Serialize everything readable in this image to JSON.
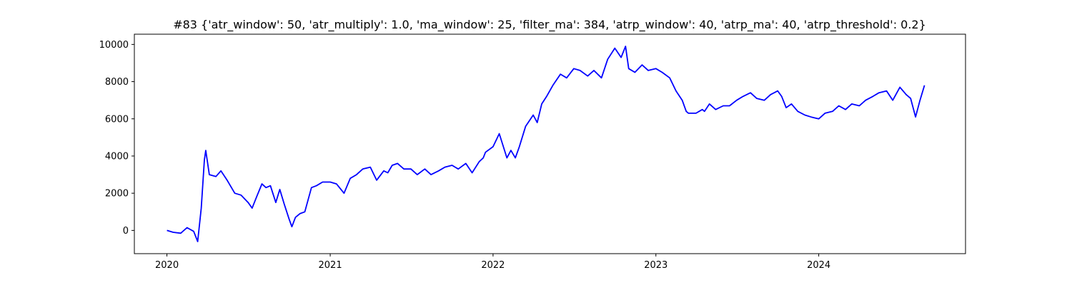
{
  "chart_data": {
    "type": "line",
    "title": "#83 {'atr_window': 50, 'atr_multiply': 1.0, 'ma_window': 25, 'filter_ma': 384, 'atrp_window': 40, 'atrp_ma': 40, 'atrp_threshold': 0.2}",
    "xlabel": "",
    "ylabel": "",
    "grid": false,
    "legend": "none",
    "x_ticks": [
      "2020",
      "2021",
      "2022",
      "2023",
      "2024"
    ],
    "x_tick_values": [
      "2020-01-01",
      "2021-01-01",
      "2022-01-01",
      "2023-01-01",
      "2024-01-01"
    ],
    "y_ticks": [
      0,
      2000,
      4000,
      6000,
      8000,
      10000
    ],
    "xlim": [
      "2019-10-20",
      "2024-11-25"
    ],
    "ylim": [
      -1250,
      10550
    ],
    "series": [
      {
        "color": "#0000ff",
        "x": [
          "2020-01-01",
          "2020-01-15",
          "2020-02-01",
          "2020-02-15",
          "2020-03-01",
          "2020-03-10",
          "2020-03-18",
          "2020-03-25",
          "2020-03-28",
          "2020-04-05",
          "2020-04-20",
          "2020-05-01",
          "2020-05-15",
          "2020-06-01",
          "2020-06-15",
          "2020-07-01",
          "2020-07-10",
          "2020-07-20",
          "2020-08-01",
          "2020-08-10",
          "2020-08-20",
          "2020-09-01",
          "2020-09-10",
          "2020-09-20",
          "2020-10-01",
          "2020-10-07",
          "2020-10-15",
          "2020-10-25",
          "2020-11-05",
          "2020-11-20",
          "2020-12-01",
          "2020-12-15",
          "2021-01-01",
          "2021-01-15",
          "2021-02-01",
          "2021-02-15",
          "2021-03-01",
          "2021-03-15",
          "2021-04-01",
          "2021-04-15",
          "2021-05-01",
          "2021-05-10",
          "2021-05-20",
          "2021-06-01",
          "2021-06-15",
          "2021-07-01",
          "2021-07-15",
          "2021-08-01",
          "2021-08-15",
          "2021-09-01",
          "2021-09-15",
          "2021-10-01",
          "2021-10-15",
          "2021-11-01",
          "2021-11-15",
          "2021-12-01",
          "2021-12-10",
          "2021-12-15",
          "2022-01-01",
          "2022-01-15",
          "2022-02-01",
          "2022-02-10",
          "2022-02-20",
          "2022-03-01",
          "2022-03-15",
          "2022-04-01",
          "2022-04-10",
          "2022-04-20",
          "2022-05-01",
          "2022-05-15",
          "2022-06-01",
          "2022-06-15",
          "2022-07-01",
          "2022-07-15",
          "2022-08-01",
          "2022-08-15",
          "2022-09-01",
          "2022-09-15",
          "2022-10-01",
          "2022-10-15",
          "2022-10-25",
          "2022-11-01",
          "2022-11-15",
          "2022-12-01",
          "2022-12-15",
          "2023-01-01",
          "2023-01-15",
          "2023-02-01",
          "2023-02-15",
          "2023-03-01",
          "2023-03-10",
          "2023-03-15",
          "2023-04-01",
          "2023-04-15",
          "2023-04-20",
          "2023-05-01",
          "2023-05-15",
          "2023-06-01",
          "2023-06-15",
          "2023-07-01",
          "2023-07-15",
          "2023-08-01",
          "2023-08-15",
          "2023-09-01",
          "2023-09-15",
          "2023-10-01",
          "2023-10-10",
          "2023-10-20",
          "2023-11-01",
          "2023-11-15",
          "2023-12-01",
          "2023-12-15",
          "2024-01-01",
          "2024-01-15",
          "2024-02-01",
          "2024-02-15",
          "2024-03-01",
          "2024-03-15",
          "2024-04-01",
          "2024-04-15",
          "2024-05-01",
          "2024-05-15",
          "2024-06-01",
          "2024-06-15",
          "2024-07-01",
          "2024-07-15",
          "2024-07-25",
          "2024-08-05",
          "2024-08-15",
          "2024-08-25"
        ],
        "values": [
          0,
          -100,
          -150,
          150,
          -50,
          -600,
          1200,
          3800,
          4300,
          3000,
          2900,
          3200,
          2700,
          2000,
          1900,
          1500,
          1200,
          1800,
          2500,
          2300,
          2400,
          1500,
          2200,
          1400,
          600,
          200,
          700,
          900,
          1000,
          2300,
          2400,
          2600,
          2600,
          2500,
          2000,
          2800,
          3000,
          3300,
          3400,
          2700,
          3200,
          3100,
          3500,
          3600,
          3300,
          3300,
          3000,
          3300,
          3000,
          3200,
          3400,
          3500,
          3300,
          3600,
          3100,
          3700,
          3900,
          4200,
          4500,
          5200,
          3900,
          4300,
          3900,
          4500,
          5600,
          6200,
          5800,
          6800,
          7200,
          7800,
          8400,
          8200,
          8700,
          8600,
          8300,
          8600,
          8200,
          9200,
          9800,
          9300,
          9900,
          8700,
          8500,
          8900,
          8600,
          8700,
          8500,
          8200,
          7500,
          7000,
          6400,
          6300,
          6300,
          6500,
          6400,
          6800,
          6500,
          6700,
          6700,
          7000,
          7200,
          7400,
          7100,
          7000,
          7300,
          7500,
          7200,
          6600,
          6800,
          6400,
          6200,
          6100,
          6000,
          6300,
          6400,
          6700,
          6500,
          6800,
          6700,
          7000,
          7200,
          7400,
          7500,
          7000,
          7700,
          7300,
          7100,
          6100,
          7000,
          7800
        ]
      }
    ]
  }
}
